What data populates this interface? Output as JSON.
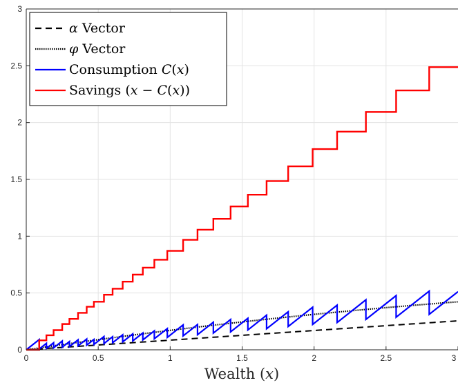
{
  "chart_data": {
    "type": "line",
    "title": "",
    "xlabel": "Wealth (x)",
    "ylabel": "",
    "xlim": [
      0,
      3
    ],
    "ylim": [
      0,
      3
    ],
    "grid": true,
    "legend_position": "top-left",
    "x_ticks": [
      0,
      0.5,
      1,
      1.5,
      2,
      2.5,
      3
    ],
    "x_tick_labels": [
      "0",
      "0.5",
      "1",
      "1.5",
      "2",
      "2.5",
      "3"
    ],
    "y_ticks": [
      0,
      0.5,
      1,
      1.5,
      2,
      2.5,
      3
    ],
    "y_tick_labels": [
      "0",
      "0.5",
      "1",
      "1.5",
      "2",
      "2.5",
      "3"
    ],
    "jump_points": [
      0.09,
      0.14,
      0.19,
      0.25,
      0.3,
      0.36,
      0.42,
      0.47,
      0.54,
      0.6,
      0.67,
      0.74,
      0.81,
      0.89,
      0.98,
      1.09,
      1.19,
      1.3,
      1.42,
      1.54,
      1.67,
      1.82,
      1.99,
      2.16,
      2.36,
      2.57,
      2.8
    ],
    "series": [
      {
        "name": "α Vector",
        "color": "#000000",
        "style": "dashed",
        "x": [
          0,
          0.5,
          1,
          1.5,
          2,
          2.5,
          3
        ],
        "y": [
          0,
          0.04,
          0.085,
          0.13,
          0.17,
          0.21,
          0.255
        ]
      },
      {
        "name": "φ Vector",
        "color": "#000000",
        "style": "dotted",
        "x": [
          0,
          0.5,
          1,
          1.5,
          2,
          2.5,
          3
        ],
        "y": [
          0,
          0.09,
          0.17,
          0.25,
          0.32,
          0.4,
          0.47
        ]
      },
      {
        "name": "Consumption C(x)",
        "color": "#0000ff",
        "style": "solid",
        "description_points": "sawtooth between the alpha and phi curves",
        "x": [
          0,
          0.5,
          1,
          1.5,
          2,
          2.5,
          3
        ],
        "y": [
          0,
          0.06,
          0.12,
          0.19,
          0.25,
          0.31,
          0.43
        ]
      },
      {
        "name": "Savings (x − C(x))",
        "color": "#ff0000",
        "style": "solid",
        "x": [
          0.09,
          0.14,
          0.19,
          0.25,
          0.3,
          0.36,
          0.42,
          0.47,
          0.54,
          0.6,
          0.67,
          0.74,
          0.81,
          0.89,
          0.98,
          1.09,
          1.19,
          1.3,
          1.42,
          1.54,
          1.67,
          1.82,
          1.99,
          2.16,
          2.36,
          2.57,
          2.8
        ],
        "y": [
          0.083,
          0.128,
          0.173,
          0.227,
          0.272,
          0.325,
          0.379,
          0.423,
          0.485,
          0.538,
          0.6,
          0.662,
          0.723,
          0.793,
          0.871,
          0.968,
          1.057,
          1.153,
          1.262,
          1.365,
          1.485,
          1.615,
          1.767,
          1.92,
          2.093,
          2.283,
          2.488
        ]
      }
    ]
  },
  "legend": {
    "items": [
      {
        "prefix": "α",
        "text": " Vector"
      },
      {
        "prefix": "φ",
        "text": " Vector"
      },
      {
        "prefix": "",
        "text": "Consumption C(x)"
      },
      {
        "prefix": "",
        "text": "Savings (x − C(x))"
      }
    ]
  }
}
